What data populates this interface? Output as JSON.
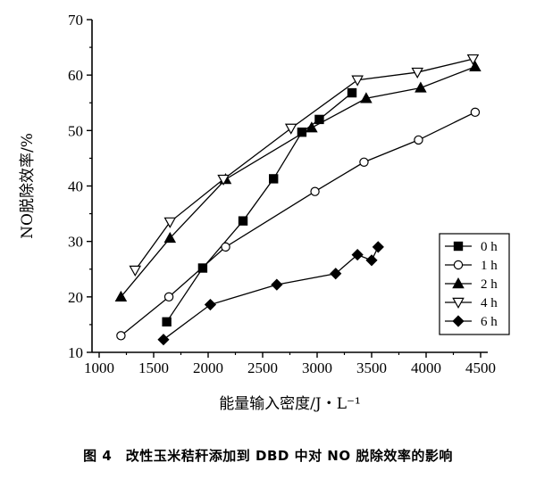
{
  "caption": "图 4　改性玉米秸秆添加到 DBD 中对 NO 脱除效率的影响",
  "chart_data": {
    "type": "line",
    "title": "",
    "xlabel": "能量输入密度/J・L⁻¹",
    "ylabel": "NO脱除效率/%",
    "xlim": [
      1000,
      4500
    ],
    "ylim": [
      10,
      70
    ],
    "x_ticks": [
      1000,
      1500,
      2000,
      2500,
      3000,
      3500,
      4000,
      4500
    ],
    "y_ticks": [
      10,
      20,
      30,
      40,
      50,
      60,
      70
    ],
    "grid": false,
    "legend_position": "right",
    "series": [
      {
        "name": "0 h",
        "marker": "filled-square",
        "x": [
          1620,
          1950,
          2320,
          2600,
          2860,
          3020,
          3320
        ],
        "y": [
          15.5,
          25.2,
          33.7,
          41.3,
          49.7,
          52.0,
          56.8
        ]
      },
      {
        "name": "1 h",
        "marker": "open-circle",
        "x": [
          1200,
          1640,
          2160,
          2980,
          3430,
          3930,
          4450
        ],
        "y": [
          13.0,
          20.0,
          29.0,
          39.0,
          44.3,
          48.3,
          53.3
        ]
      },
      {
        "name": "2 h",
        "marker": "filled-triangle",
        "x": [
          1200,
          1650,
          2160,
          2950,
          3450,
          3950,
          4450
        ],
        "y": [
          20.0,
          30.6,
          41.2,
          50.5,
          55.8,
          57.7,
          61.5
        ]
      },
      {
        "name": "4 h",
        "marker": "open-triangle-down",
        "x": [
          1330,
          1650,
          2140,
          2760,
          3370,
          3920,
          4430
        ],
        "y": [
          24.8,
          33.5,
          41.2,
          50.4,
          59.1,
          60.5,
          62.9
        ]
      },
      {
        "name": "6 h",
        "marker": "filled-diamond",
        "x": [
          1590,
          2020,
          2630,
          3170,
          3370,
          3500,
          3560
        ],
        "y": [
          12.3,
          18.6,
          22.2,
          24.2,
          27.6,
          26.6,
          29.0
        ]
      }
    ]
  }
}
